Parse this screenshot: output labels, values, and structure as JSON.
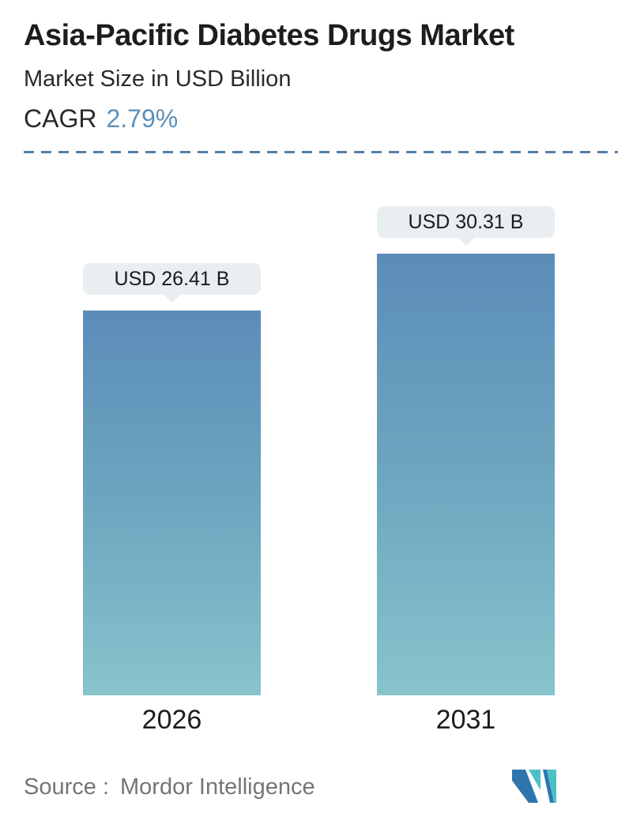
{
  "chart_data": {
    "type": "bar",
    "title": "Asia-Pacific Diabetes Drugs Market",
    "subtitle": "Market Size in USD Billion",
    "cagr_label": "CAGR",
    "cagr_value": "2.79%",
    "categories": [
      "2026",
      "2031"
    ],
    "values": [
      26.41,
      30.31
    ],
    "value_labels": [
      "USD 26.41 B",
      "USD 30.31 B"
    ],
    "unit": "USD Billion",
    "ylim": [
      0,
      30.31
    ],
    "reference_line_value": 26.41,
    "legend": "none",
    "grid": "off",
    "colors": {
      "bar_gradient_top": "#5c8cb9",
      "bar_gradient_mid": "#6da7c0",
      "bar_gradient_bottom": "#87c4cc",
      "dashed_line": "#5080ab",
      "callout_background": "#e9eef0",
      "callout_text": "#1b1b1b",
      "cagr_accent": "#5b90bb",
      "source_text": "#757575",
      "logo_blue": "#2e75ae",
      "logo_teal": "#4bc0c6"
    }
  },
  "footer": {
    "source_label": "Source :",
    "source_value": "Mordor Intelligence",
    "logo_name": "mordor-intelligence-logo"
  }
}
